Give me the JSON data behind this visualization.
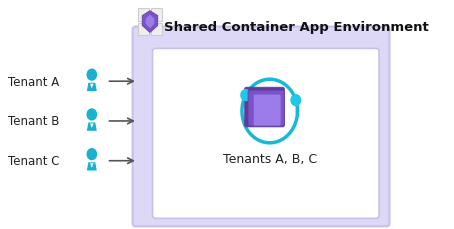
{
  "title": "Shared Container App Environment",
  "tenants": [
    "Tenant A",
    "Tenant B",
    "Tenant C"
  ],
  "bg_color": "#ffffff",
  "outer_box_color": "#ddd8f5",
  "outer_box_edge": "#c8c0ec",
  "inner_box_color": "#ffffff",
  "inner_box_edge": "#c8c0ec",
  "person_color": "#1ab0d0",
  "person_neck_color": "#ffffff",
  "arrow_color": "#555555",
  "tenant_label_color": "#222222",
  "title_color": "#111111",
  "tenants_label": "Tenants A, B, C",
  "teal_circle_color": "#18b8d8",
  "teal_dot_color": "#20c8e8",
  "purple_dark": "#5c3d9e",
  "purple_mid": "#7b52c8",
  "purple_light": "#9c7ce8",
  "icon_grid_color": "#cccccc",
  "icon_grid_fill": "#eeeeee"
}
